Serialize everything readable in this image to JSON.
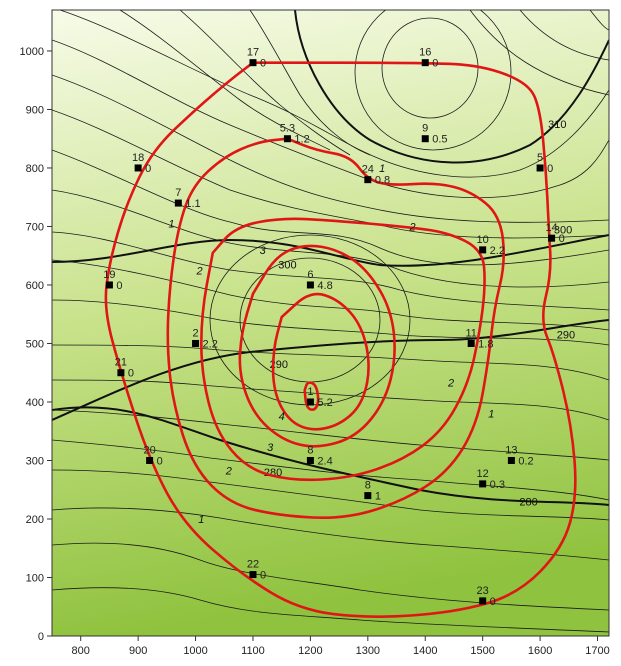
{
  "chart_data": {
    "type": "contour-map",
    "title": "",
    "xlabel": "",
    "ylabel": "",
    "xlim": [
      750,
      1720
    ],
    "ylim": [
      0,
      1070
    ],
    "x_ticks": [
      800,
      900,
      1000,
      1100,
      1200,
      1300,
      1400,
      1500,
      1600,
      1700
    ],
    "y_ticks": [
      0,
      100,
      200,
      300,
      400,
      500,
      600,
      700,
      800,
      900,
      1000
    ],
    "grid": false,
    "background_gradient": [
      "#f7fbe8",
      "#8fc23e"
    ],
    "black_contour_labels": [
      {
        "text": "310",
        "x": 1630,
        "y": 875
      },
      {
        "text": "300",
        "x": 1640,
        "y": 695
      },
      {
        "text": "300",
        "x": 1160,
        "y": 635
      },
      {
        "text": "290",
        "x": 1645,
        "y": 515
      },
      {
        "text": "290",
        "x": 1145,
        "y": 465
      },
      {
        "text": "280",
        "x": 1135,
        "y": 280
      },
      {
        "text": "280",
        "x": 1580,
        "y": 230
      }
    ],
    "red_contour_labels": [
      {
        "text": "1",
        "x": 1325,
        "y": 800
      },
      {
        "text": "2",
        "x": 1378,
        "y": 700
      },
      {
        "text": "3",
        "x": 1117,
        "y": 660
      },
      {
        "text": "1",
        "x": 958,
        "y": 705
      },
      {
        "text": "2",
        "x": 1007,
        "y": 625
      },
      {
        "text": "4",
        "x": 1150,
        "y": 376
      },
      {
        "text": "3",
        "x": 1130,
        "y": 323
      },
      {
        "text": "2",
        "x": 1058,
        "y": 283
      },
      {
        "text": "1",
        "x": 1010,
        "y": 200
      },
      {
        "text": "2",
        "x": 1445,
        "y": 433
      },
      {
        "text": "1",
        "x": 1515,
        "y": 380
      }
    ],
    "points": [
      {
        "id": "17",
        "x": 1100,
        "y": 980,
        "value": "0"
      },
      {
        "id": "16",
        "x": 1400,
        "y": 980,
        "value": "0"
      },
      {
        "id": "9",
        "x": 1400,
        "y": 850,
        "value": "0.5"
      },
      {
        "id": "5.3",
        "x": 1160,
        "y": 850,
        "value": "1.2"
      },
      {
        "id": "24",
        "x": 1300,
        "y": 780,
        "value": "0.8"
      },
      {
        "id": "18",
        "x": 900,
        "y": 800,
        "value": "0"
      },
      {
        "id": "5",
        "x": 1600,
        "y": 800,
        "value": "0"
      },
      {
        "id": "7",
        "x": 970,
        "y": 740,
        "value": "1.1"
      },
      {
        "id": "14",
        "x": 1620,
        "y": 680,
        "value": "0"
      },
      {
        "id": "10",
        "x": 1500,
        "y": 660,
        "value": "2.2"
      },
      {
        "id": "19",
        "x": 850,
        "y": 600,
        "value": "0"
      },
      {
        "id": "6",
        "x": 1200,
        "y": 600,
        "value": "4.8"
      },
      {
        "id": "2",
        "x": 1000,
        "y": 500,
        "value": "2.2"
      },
      {
        "id": "11",
        "x": 1480,
        "y": 500,
        "value": "1.8"
      },
      {
        "id": "21",
        "x": 870,
        "y": 450,
        "value": "0"
      },
      {
        "id": "1",
        "x": 1200,
        "y": 400,
        "value": "5.2"
      },
      {
        "id": "8",
        "x": 1200,
        "y": 300,
        "value": "2.4"
      },
      {
        "id": "20",
        "x": 920,
        "y": 300,
        "value": "0"
      },
      {
        "id": "13",
        "x": 1550,
        "y": 300,
        "value": "0.2"
      },
      {
        "id": "12",
        "x": 1500,
        "y": 260,
        "value": "0.3"
      },
      {
        "id": "8",
        "x": 1300,
        "y": 240,
        "value": "1"
      },
      {
        "id": "22",
        "x": 1100,
        "y": 105,
        "value": "0"
      },
      {
        "id": "23",
        "x": 1500,
        "y": 60,
        "value": "0"
      }
    ],
    "red_contours": [
      {
        "level": "0",
        "path": [
          [
            1100,
            980
          ],
          [
            1400,
            980
          ],
          [
            1500,
            975
          ],
          [
            1580,
            945
          ],
          [
            1600,
            900
          ],
          [
            1610,
            800
          ],
          [
            1615,
            700
          ],
          [
            1620,
            620
          ],
          [
            1600,
            540
          ],
          [
            1625,
            480
          ],
          [
            1655,
            360
          ],
          [
            1665,
            240
          ],
          [
            1640,
            150
          ],
          [
            1560,
            70
          ],
          [
            1450,
            40
          ],
          [
            1300,
            30
          ],
          [
            1180,
            45
          ],
          [
            1080,
            105
          ],
          [
            980,
            190
          ],
          [
            920,
            300
          ],
          [
            870,
            450
          ],
          [
            840,
            560
          ],
          [
            850,
            640
          ],
          [
            880,
            740
          ],
          [
            925,
            830
          ],
          [
            1000,
            900
          ],
          [
            1060,
            950
          ],
          [
            1100,
            980
          ]
        ]
      },
      {
        "level": "1",
        "path": [
          [
            1160,
            850
          ],
          [
            1210,
            830
          ],
          [
            1270,
            820
          ],
          [
            1300,
            780
          ],
          [
            1340,
            770
          ],
          [
            1420,
            775
          ],
          [
            1480,
            760
          ],
          [
            1530,
            720
          ],
          [
            1540,
            640
          ],
          [
            1520,
            560
          ],
          [
            1510,
            470
          ],
          [
            1490,
            360
          ],
          [
            1440,
            280
          ],
          [
            1360,
            230
          ],
          [
            1260,
            200
          ],
          [
            1150,
            205
          ],
          [
            1060,
            225
          ],
          [
            995,
            290
          ],
          [
            960,
            400
          ],
          [
            950,
            500
          ],
          [
            955,
            600
          ],
          [
            970,
            700
          ],
          [
            995,
            770
          ],
          [
            1050,
            820
          ],
          [
            1110,
            845
          ],
          [
            1160,
            850
          ]
        ]
      },
      {
        "level": "2",
        "path": [
          [
            1030,
            655
          ],
          [
            1070,
            700
          ],
          [
            1150,
            715
          ],
          [
            1240,
            710
          ],
          [
            1360,
            700
          ],
          [
            1440,
            690
          ],
          [
            1500,
            660
          ],
          [
            1505,
            600
          ],
          [
            1495,
            520
          ],
          [
            1475,
            430
          ],
          [
            1430,
            350
          ],
          [
            1360,
            300
          ],
          [
            1270,
            270
          ],
          [
            1170,
            265
          ],
          [
            1090,
            285
          ],
          [
            1035,
            350
          ],
          [
            1010,
            450
          ],
          [
            1010,
            550
          ],
          [
            1030,
            655
          ]
        ]
      },
      {
        "level": "3",
        "path": [
          [
            1100,
            585
          ],
          [
            1140,
            650
          ],
          [
            1190,
            670
          ],
          [
            1250,
            660
          ],
          [
            1300,
            625
          ],
          [
            1340,
            560
          ],
          [
            1350,
            480
          ],
          [
            1330,
            400
          ],
          [
            1280,
            340
          ],
          [
            1210,
            320
          ],
          [
            1150,
            335
          ],
          [
            1100,
            380
          ],
          [
            1075,
            450
          ],
          [
            1080,
            520
          ],
          [
            1100,
            585
          ]
        ]
      },
      {
        "level": "4",
        "path": [
          [
            1150,
            545
          ],
          [
            1200,
            590
          ],
          [
            1250,
            575
          ],
          [
            1290,
            530
          ],
          [
            1305,
            460
          ],
          [
            1290,
            395
          ],
          [
            1250,
            360
          ],
          [
            1200,
            350
          ],
          [
            1160,
            370
          ],
          [
            1135,
            420
          ],
          [
            1135,
            490
          ],
          [
            1150,
            545
          ]
        ]
      },
      {
        "level": "5",
        "path": [
          [
            1190,
            420
          ],
          [
            1195,
            435
          ],
          [
            1210,
            430
          ],
          [
            1215,
            400
          ],
          [
            1207,
            385
          ],
          [
            1193,
            390
          ],
          [
            1190,
            420
          ]
        ]
      }
    ]
  }
}
